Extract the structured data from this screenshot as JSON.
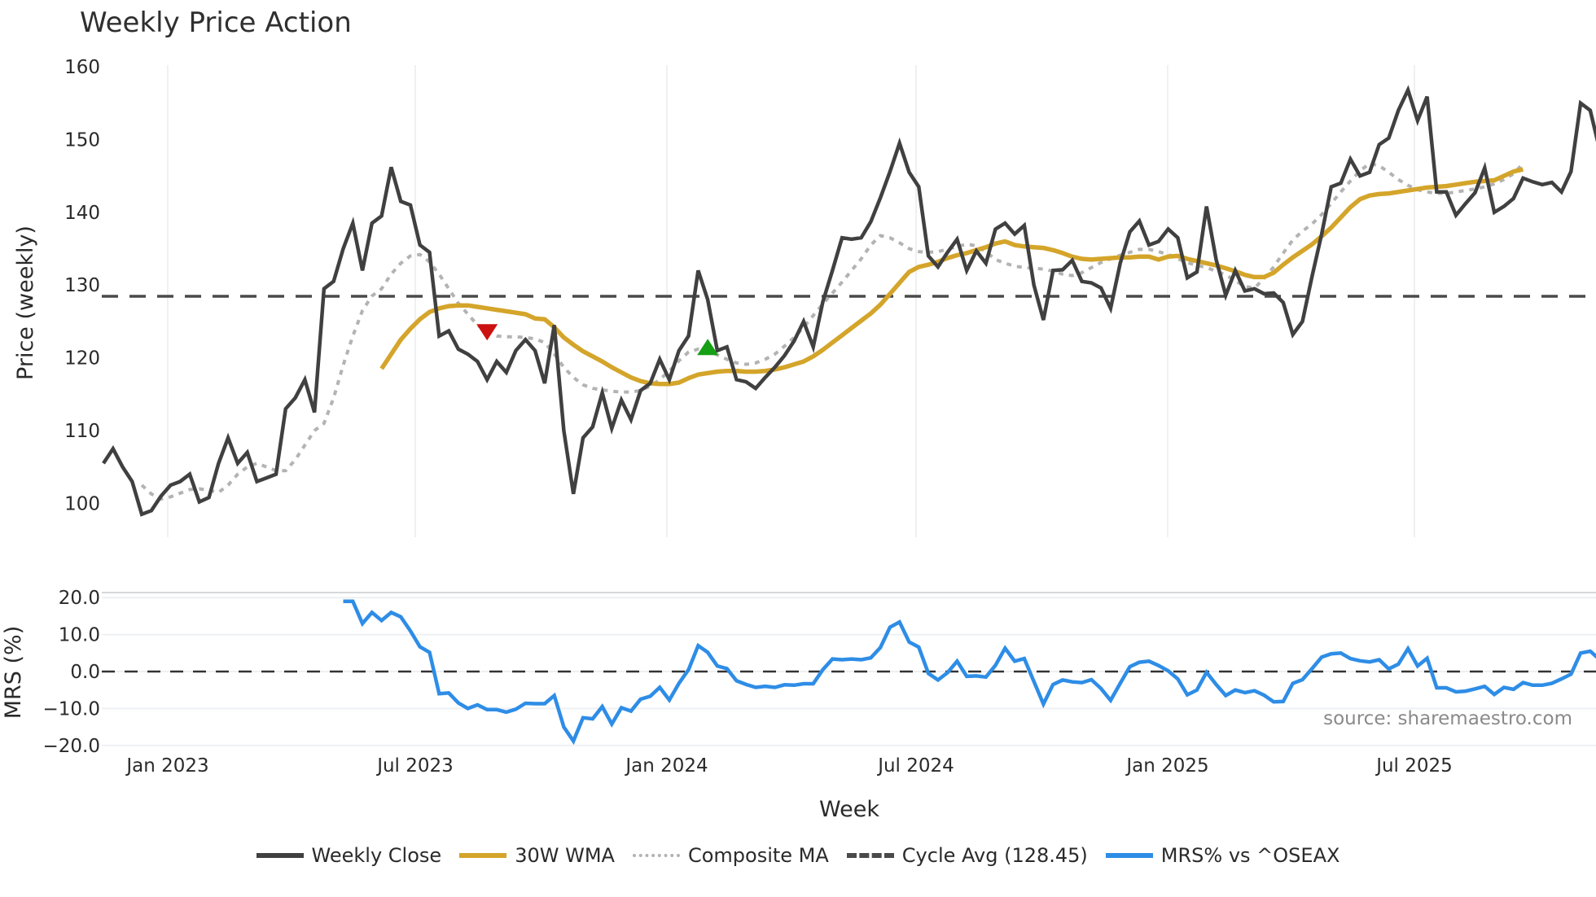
{
  "title": "Weekly Price Action",
  "source_note": "source: sharemaestro.com",
  "price_panel": {
    "ylabel": "Price (weekly)",
    "yticks": [
      "100",
      "110",
      "120",
      "130",
      "140",
      "150",
      "160"
    ]
  },
  "mrs_panel": {
    "ylabel": "MRS (%)",
    "yticks": [
      "−20.0",
      "−10.0",
      "0.0",
      "10.0",
      "20.0"
    ]
  },
  "xaxis": {
    "xlabel": "Week",
    "xticks": [
      "Jan 2023",
      "Jul 2023",
      "Jan 2024",
      "Jul 2024",
      "Jan 2025",
      "Jul 2025"
    ]
  },
  "legend": [
    {
      "label": "Weekly Close",
      "color": "#404040",
      "style": "solid"
    },
    {
      "label": "30W WMA",
      "color": "#d4a52a",
      "style": "solid"
    },
    {
      "label": "Composite MA",
      "color": "#b3b3b3",
      "style": "dotted"
    },
    {
      "label": "Cycle Avg (128.45)",
      "color": "#4a4a4a",
      "style": "dashed"
    },
    {
      "label": "MRS% vs ^OSEAX",
      "color": "#2e8de6",
      "style": "solid"
    }
  ],
  "colors": {
    "close": "#404040",
    "wma": "#d4a52a",
    "composite": "#b3b3b3",
    "cycle": "#4a4a4a",
    "mrs": "#2e8de6",
    "sell_marker": "#cc1111",
    "buy_marker": "#15a015",
    "grid": "#eef0f3"
  },
  "chart_data": [
    {
      "type": "line",
      "title": "Weekly Price Action",
      "xlabel": "Week",
      "ylabel": "Price (weekly)",
      "ylim": [
        95,
        161
      ],
      "grid": "vertical",
      "legend_position": "bottom",
      "x_start": "2022-12-05",
      "x_step_weeks": 1,
      "cycle_avg": 128.45,
      "series": [
        {
          "name": "Weekly Close",
          "values": [
            105.5,
            107.5,
            105,
            103,
            98.5,
            99,
            101,
            102.5,
            103,
            104,
            100.2,
            100.8,
            105.5,
            109,
            105.5,
            107,
            103,
            103.5,
            104,
            113,
            114.5,
            117,
            112.5,
            129.5,
            130.5,
            135,
            138.5,
            132,
            138.5,
            139.5,
            146.2,
            141.5,
            141,
            135.5,
            134.5,
            123,
            123.7,
            121.2,
            120.5,
            119.5,
            117,
            119.5,
            118,
            121,
            122.5,
            121,
            116.5,
            124.5,
            110,
            101.3,
            109,
            110.5,
            115.2,
            110.3,
            114.2,
            111.5,
            115.5,
            116.5,
            119.8,
            117,
            121,
            123,
            132,
            128,
            121,
            121.5,
            117,
            116.7,
            115.8,
            117.3,
            118.7,
            120.3,
            122.3,
            125,
            121.5,
            127.7,
            132,
            136.5,
            136.3,
            136.5,
            138.7,
            142,
            145.6,
            149.5,
            145.5,
            143.5,
            134,
            132.5,
            134.5,
            136.3,
            132,
            134.7,
            133,
            137.7,
            138.5,
            137,
            138.2,
            130,
            125.2,
            132,
            132.1,
            133.4,
            130.5,
            130.3,
            129.6,
            126.8,
            133,
            137.3,
            138.8,
            135.5,
            136,
            137.7,
            136.5,
            131,
            131.8,
            140.8,
            133.5,
            128.6,
            132,
            129.2,
            129.5,
            128.8,
            128.9,
            127.6,
            123.2,
            125,
            131.2,
            137,
            143.5,
            144,
            147.3,
            145,
            145.5,
            149.3,
            150.2,
            154,
            156.8,
            152.6,
            155.9,
            142.8,
            142.8,
            139.6,
            141.2,
            142.7,
            146.1,
            140,
            140.8,
            141.9,
            144.7,
            144.2,
            143.8,
            144.1,
            142.8,
            145.6,
            155,
            154,
            148.5
          ]
        },
        {
          "name": "30W WMA",
          "start_index": 29,
          "values": [
            118.5,
            120.5,
            122.5,
            124,
            125.3,
            126.3,
            126.8,
            127.1,
            127.2,
            127.2,
            127,
            126.8,
            126.6,
            126.4,
            126.2,
            126,
            125.4,
            125.3,
            124.2,
            122.8,
            121.8,
            120.9,
            120.2,
            119.5,
            118.7,
            118,
            117.3,
            116.8,
            116.5,
            116.4,
            116.4,
            116.6,
            117.2,
            117.7,
            117.9,
            118.1,
            118.2,
            118.2,
            118.1,
            118.1,
            118.2,
            118.4,
            118.7,
            119.1,
            119.5,
            120.2,
            121.1,
            122.1,
            123.1,
            124.1,
            125.1,
            126.1,
            127.3,
            128.8,
            130.3,
            131.8,
            132.5,
            132.8,
            133.2,
            133.7,
            134.1,
            134.4,
            134.8,
            135.2,
            135.7,
            136,
            135.5,
            135.3,
            135.2,
            135.1,
            134.8,
            134.4,
            133.9,
            133.6,
            133.5,
            133.6,
            133.7,
            133.8,
            133.8,
            133.9,
            133.9,
            133.5,
            133.9,
            134,
            133.6,
            133.3,
            133,
            132.7,
            132.3,
            131.9,
            131.4,
            131.1,
            131.1,
            131.7,
            132.8,
            133.8,
            134.7,
            135.6,
            136.7,
            137.9,
            139.3,
            140.7,
            141.8,
            142.3,
            142.5,
            142.6,
            142.8,
            143,
            143.2,
            143.4,
            143.5,
            143.6,
            143.8,
            144,
            144.2,
            144.3,
            144.4,
            145,
            145.6,
            145.9
          ]
        },
        {
          "name": "Composite MA",
          "start_index": 4,
          "values": [
            102.5,
            101.3,
            100.6,
            100.9,
            101.4,
            101.9,
            102,
            101.8,
            101.5,
            102.5,
            104,
            105,
            105.5,
            105,
            104.5,
            104.5,
            106,
            108,
            110,
            111,
            114.5,
            119,
            123,
            126.5,
            128.5,
            129.5,
            131.5,
            133,
            134,
            134.2,
            133.2,
            131.5,
            129.5,
            127.5,
            126,
            124.5,
            123.6,
            123,
            122.9,
            122.9,
            122.8,
            122.6,
            122.1,
            120.5,
            118.7,
            117.3,
            116.3,
            115.8,
            115.6,
            115.4,
            115.3,
            115.3,
            115.5,
            116.1,
            117,
            118.2,
            119.6,
            120.8,
            121.2,
            120.9,
            120.4,
            119.8,
            119.3,
            119.1,
            119.3,
            119.8,
            120.5,
            121.6,
            122.8,
            124.2,
            125.8,
            127.4,
            128.9,
            130.4,
            132,
            133.6,
            135.5,
            136.8,
            136.5,
            135.8,
            135,
            134.6,
            134.5,
            134.6,
            134.9,
            135.3,
            135.6,
            135.4,
            134.6,
            133.5,
            133,
            132.6,
            132.4,
            132.3,
            132.2,
            131.9,
            131.5,
            131.3,
            131.7,
            132.4,
            133.1,
            133.6,
            134.1,
            134.5,
            134.9,
            134.9,
            134.6,
            134.2,
            133.6,
            133.1,
            132.7,
            132.4,
            131.9,
            131.4,
            130.6,
            129.8,
            129.6,
            130.9,
            132.5,
            134.4,
            136.2,
            137.4,
            138.4,
            139.7,
            141.2,
            142.8,
            144.3,
            145.7,
            146.7,
            146.4,
            145.5,
            144.5,
            143.7,
            143.1,
            142.8,
            142.6,
            142.6,
            142.8,
            143,
            143.2,
            143.5,
            143.9,
            144.5,
            145.3,
            146.7
          ]
        },
        {
          "name": "Cycle Avg (128.45)",
          "values": [
            128.45
          ]
        }
      ],
      "markers": [
        {
          "type": "sell",
          "shape": "triangle-down",
          "color": "#cc1111",
          "week_index": 40,
          "price": 123.5
        },
        {
          "type": "buy",
          "shape": "triangle-up",
          "color": "#15a015",
          "week_index": 63,
          "price": 121.5
        }
      ]
    },
    {
      "type": "line",
      "title": "",
      "xlabel": "Week",
      "ylabel": "MRS (%)",
      "ylim": [
        -21,
        22
      ],
      "zero_line": 0,
      "series": [
        {
          "name": "MRS% vs ^OSEAX",
          "start_index": 25,
          "values": [
            19,
            19,
            13,
            16,
            13.8,
            16,
            14.8,
            11,
            6.7,
            5.2,
            -6,
            -5.8,
            -8.5,
            -10,
            -9,
            -10.3,
            -10.3,
            -11,
            -10.2,
            -8.6,
            -8.7,
            -8.7,
            -6.5,
            -15,
            -18.8,
            -12.5,
            -12.8,
            -9.5,
            -14.2,
            -9.8,
            -10.7,
            -7.5,
            -6.7,
            -4.3,
            -7.7,
            -3.2,
            0.5,
            7,
            5.2,
            1.5,
            0.8,
            -2.5,
            -3.5,
            -4.3,
            -4,
            -4.3,
            -3.6,
            -3.7,
            -3.3,
            -3.3,
            0.5,
            3.4,
            3.2,
            3.4,
            3.2,
            3.7,
            6.5,
            12,
            13.4,
            8,
            6.6,
            -0.5,
            -2.3,
            -0.3,
            2.8,
            -1.3,
            -1.2,
            -1.5,
            1.7,
            6.3,
            2.8,
            3.5,
            -2.7,
            -8.8,
            -3.5,
            -2.3,
            -2.8,
            -3,
            -2.2,
            -4.6,
            -7.8,
            -3.2,
            1.3,
            2.5,
            2.8,
            1.6,
            0.2,
            -2,
            -6.3,
            -5,
            -0.2,
            -3.5,
            -6.5,
            -5,
            -5.7,
            -5.2,
            -6.4,
            -8.2,
            -8.1,
            -3.2,
            -2.2,
            0.8,
            3.9,
            4.8,
            5,
            3.5,
            2.9,
            2.6,
            3.2,
            0.7,
            2,
            6.2,
            1.5,
            3.6,
            -4.4,
            -4.4,
            -5.5,
            -5.3,
            -4.7,
            -4,
            -6.2,
            -4.3,
            -4.8,
            -3,
            -3.7,
            -3.7,
            -3.2,
            -2,
            -0.7,
            5,
            5.5,
            3.2
          ]
        }
      ]
    }
  ]
}
